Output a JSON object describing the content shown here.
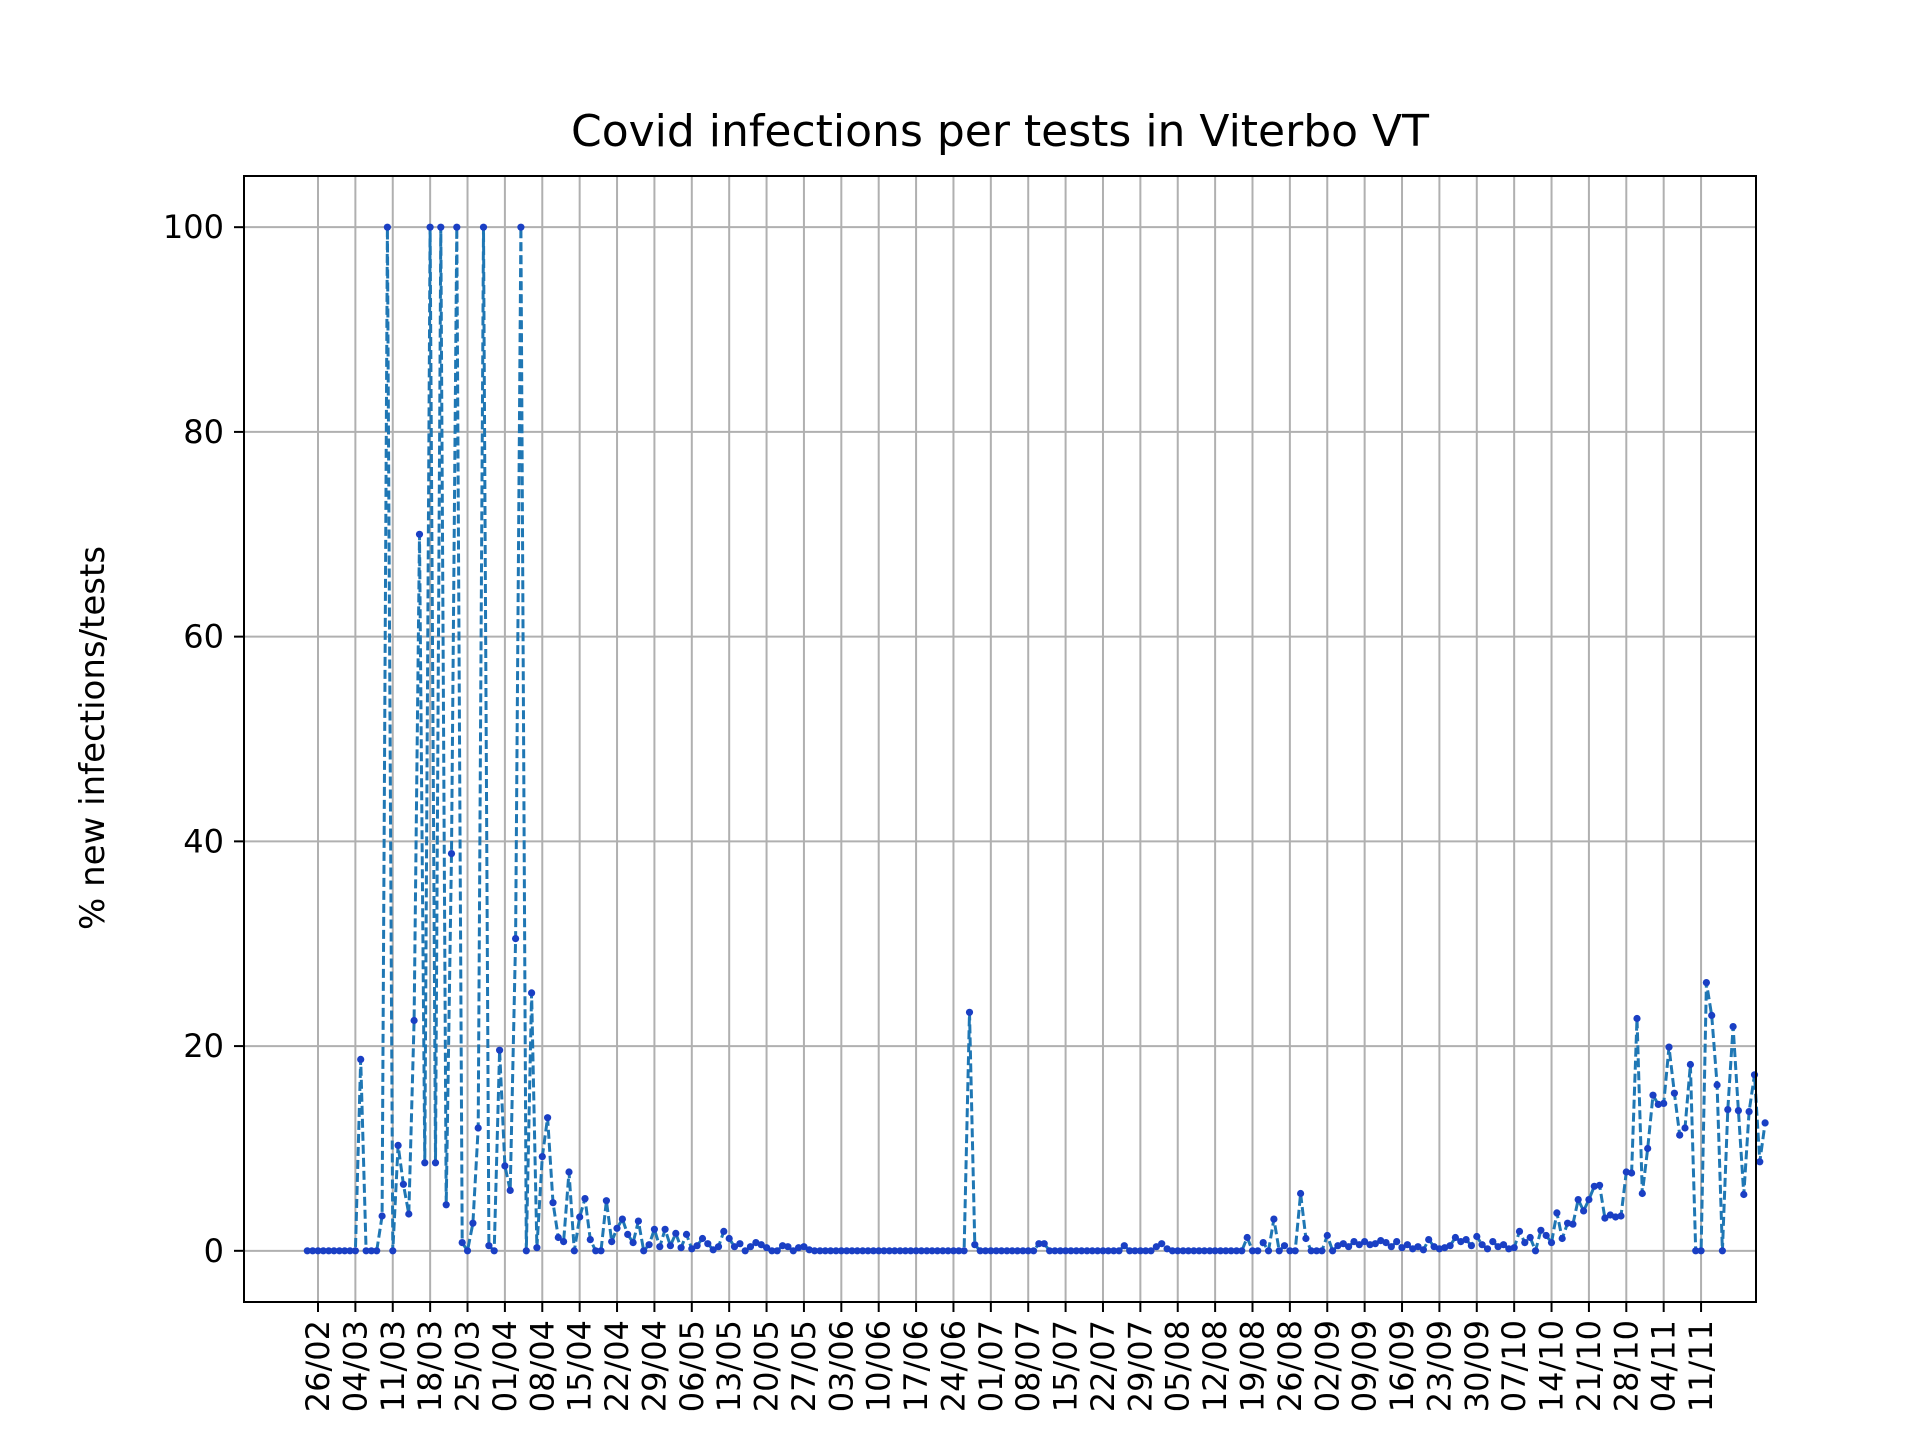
{
  "chart_data": {
    "type": "line",
    "title": "Covid infections per tests in Viterbo VT",
    "xlabel": "",
    "ylabel": "% new infections/tests",
    "ylim": [
      -5,
      105
    ],
    "yticks": [
      0,
      20,
      40,
      60,
      80,
      100
    ],
    "grid": true,
    "line_style": "dashed",
    "marker": "dot",
    "colors": {
      "line": "#1f77b4",
      "marker": "#1a3fc4",
      "grid": "#b0b0b0",
      "axes": "#000000"
    },
    "x_tick_labels": [
      "26/02",
      "04/03",
      "11/03",
      "18/03",
      "25/03",
      "01/04",
      "08/04",
      "15/04",
      "22/04",
      "29/04",
      "06/05",
      "13/05",
      "20/05",
      "27/05",
      "03/06",
      "10/06",
      "17/06",
      "24/06",
      "01/07",
      "08/07",
      "15/07",
      "22/07",
      "29/07",
      "05/08",
      "12/08",
      "19/08",
      "26/08",
      "02/09",
      "09/09",
      "16/09",
      "23/09",
      "30/09",
      "07/10",
      "14/10",
      "21/10",
      "28/10",
      "04/11",
      "11/11"
    ],
    "series": [
      {
        "start_date": "24/02",
        "values": [
          0,
          0,
          0,
          0,
          0,
          0,
          0,
          0,
          0,
          0,
          18.7,
          0,
          0,
          0,
          3.4,
          100,
          0,
          10.3,
          6.5,
          3.6,
          22.5,
          70,
          8.6,
          100,
          8.6,
          100,
          4.5,
          38.8,
          100,
          0.8,
          0,
          2.7,
          12,
          100,
          0.5,
          0,
          19.6,
          8.3,
          5.9,
          30.5,
          100,
          0,
          25.2,
          0.3,
          9.2,
          13,
          4.7,
          1.3,
          0.9,
          7.7,
          0,
          3.3,
          5.1,
          1.1,
          0,
          0,
          4.9,
          0.9,
          2.2,
          3.1,
          1.6,
          0.8,
          2.9,
          0,
          0.6,
          2.1,
          0.4,
          2.1,
          0.5,
          1.7,
          0.3,
          1.6,
          0.2,
          0.5,
          1.2,
          0.7,
          0.1,
          0.4,
          1.9,
          1.2,
          0.4,
          0.7,
          0,
          0.4,
          0.8,
          0.6,
          0.3,
          0,
          0,
          0.5,
          0.4,
          0,
          0.3,
          0.4,
          0.1,
          0,
          0,
          0,
          0,
          0,
          0,
          0,
          0,
          0,
          0,
          0,
          0,
          0,
          0,
          0,
          0,
          0,
          0,
          0,
          0,
          0,
          0,
          0,
          0,
          0,
          0,
          0,
          0,
          0,
          23.3,
          0.6,
          0,
          0,
          0,
          0,
          0,
          0,
          0,
          0,
          0,
          0,
          0,
          0.7,
          0.7,
          0,
          0,
          0,
          0,
          0,
          0,
          0,
          0,
          0,
          0,
          0,
          0,
          0,
          0,
          0.5,
          0,
          0,
          0,
          0,
          0,
          0.4,
          0.7,
          0.2,
          0,
          0,
          0,
          0,
          0,
          0,
          0,
          0,
          0,
          0,
          0,
          0,
          0,
          0,
          1.3,
          0,
          0,
          0.8,
          0,
          3.1,
          0,
          0.5,
          0,
          0,
          5.6,
          1.2,
          0,
          0,
          0,
          1.5,
          0,
          0.5,
          0.7,
          0.4,
          0.9,
          0.6,
          0.9,
          0.6,
          0.7,
          1,
          0.8,
          0.4,
          0.9,
          0.3,
          0.6,
          0.2,
          0.4,
          0.1,
          1.1,
          0.4,
          0.2,
          0.3,
          0.5,
          1.3,
          0.9,
          1.1,
          0.5,
          1.4,
          0.6,
          0.2,
          0.9,
          0.4,
          0.6,
          0.2,
          0.3,
          1.9,
          0.8,
          1.3,
          0,
          2,
          1.5,
          0.8,
          3.7,
          1.2,
          2.7,
          2.6,
          5,
          3.9,
          5,
          6.3,
          6.4,
          3.2,
          3.5,
          3.3,
          3.4,
          7.7,
          7.6,
          22.7,
          5.6,
          10,
          15.2,
          14.3,
          14.4,
          19.9,
          15.4,
          11.3,
          12,
          18.2,
          0,
          0,
          26.2,
          23,
          16.2,
          0,
          13.8,
          21.9,
          13.7,
          5.5,
          13.6,
          17.2,
          8.7,
          12.5
        ]
      }
    ]
  }
}
